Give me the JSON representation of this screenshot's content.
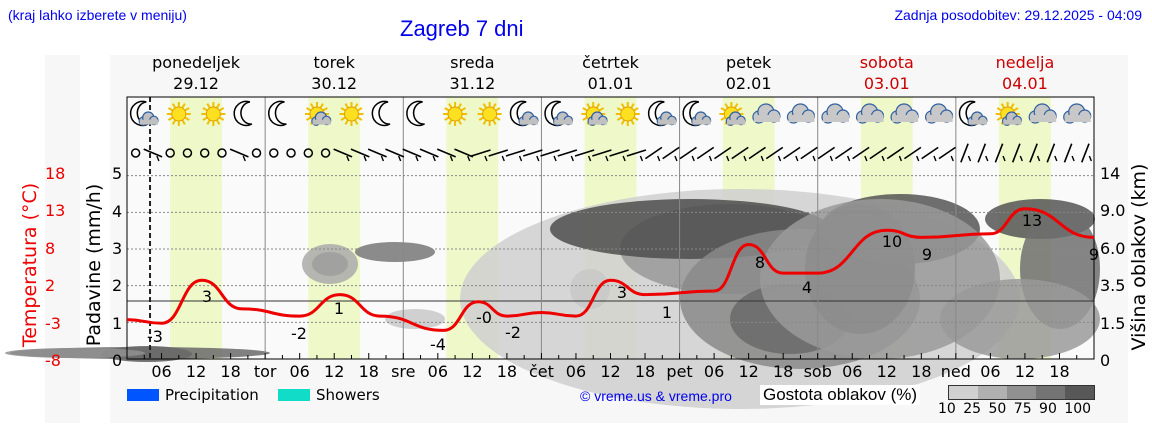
{
  "header": {
    "region_hint": "(kraj lahko izberete v meniju)",
    "title": "Zagreb 7 dni",
    "last_update": "Zadnja posodobitev: 29.12.2025 - 04:09"
  },
  "days": [
    {
      "name": "ponedeljek",
      "date": "29.12",
      "weekend": false,
      "icons": [
        "moon-cloud",
        "sun",
        "sun",
        "moon"
      ]
    },
    {
      "name": "torek",
      "date": "30.12",
      "weekend": false,
      "icons": [
        "moon",
        "sun-cloud",
        "sun",
        "moon"
      ]
    },
    {
      "name": "sreda",
      "date": "31.12",
      "weekend": false,
      "icons": [
        "moon",
        "sun",
        "sun",
        "moon-cloud"
      ]
    },
    {
      "name": "četrtek",
      "date": "01.01",
      "weekend": false,
      "icons": [
        "moon-cloud",
        "sun-cloud",
        "sun",
        "moon-cloud"
      ]
    },
    {
      "name": "petek",
      "date": "02.01",
      "weekend": false,
      "icons": [
        "moon-cloud",
        "sun-cloud",
        "cloud",
        "cloud"
      ]
    },
    {
      "name": "sobota",
      "date": "03.01",
      "weekend": true,
      "icons": [
        "cloud",
        "cloud",
        "cloud",
        "cloud"
      ]
    },
    {
      "name": "nedelja",
      "date": "04.01",
      "weekend": true,
      "icons": [
        "moon-cloud",
        "sun-cloud",
        "cloud",
        "cloud"
      ]
    }
  ],
  "axes": {
    "temp_label": "Temperatura (°C)",
    "temp_ticks": [
      "18",
      "13",
      "8",
      "2",
      "-3",
      "-8"
    ],
    "precip_label": "Padavine (mm/h)",
    "precip_ticks": [
      "5",
      "4",
      "3",
      "2",
      "1",
      "0"
    ],
    "cloud_label": "Višina oblakov (km)",
    "cloud_ticks": [
      "14",
      "9.0",
      "6.0",
      "3.5",
      "1.5",
      "0"
    ],
    "x_ticks": [
      "06",
      "12",
      "18",
      "tor",
      "06",
      "12",
      "18",
      "sre",
      "06",
      "12",
      "18",
      "čet",
      "06",
      "12",
      "18",
      "pet",
      "06",
      "12",
      "18",
      "sob",
      "06",
      "12",
      "18",
      "ned",
      "06",
      "12",
      "18"
    ]
  },
  "legend": {
    "precipitation": {
      "label": "Precipitation",
      "color": "#0055ff"
    },
    "showers": {
      "label": "Showers",
      "color": "#11dcc8"
    },
    "copyright": "© vreme.us & vreme.pro",
    "cloud_density_title": "Gostota oblakov (%)",
    "cloud_density_ticks": "10 25 50 75 90 100",
    "cloud_density_colors": [
      "#d0d0d0",
      "#b0b0b0",
      "#909090",
      "#747474",
      "#585858"
    ]
  },
  "colors": {
    "temperature_line": "#ee0000",
    "daylight_band": "#eef8c8",
    "weekend_text": "#cc0000",
    "link_blue": "#0000ee"
  },
  "chart_data": {
    "type": "line",
    "title": "Zagreb 7 dni",
    "xlabel": "",
    "x_range": [
      "29.12 00:00",
      "04.01 24:00"
    ],
    "series": [
      {
        "name": "Temperatura (°C)",
        "axis": "left-temp",
        "ylim": [
          -8,
          18
        ],
        "points": [
          {
            "t": "29.12 00",
            "v": -2.5
          },
          {
            "t": "29.12 06",
            "v": -3
          },
          {
            "t": "29.12 13",
            "v": 3
          },
          {
            "t": "29.12 20",
            "v": -1
          },
          {
            "t": "30.12 06",
            "v": -2
          },
          {
            "t": "30.12 13",
            "v": 1
          },
          {
            "t": "30.12 20",
            "v": -2
          },
          {
            "t": "31.12 07",
            "v": -4
          },
          {
            "t": "31.12 13",
            "v": 0
          },
          {
            "t": "31.12 18",
            "v": -2
          },
          {
            "t": "01.01 00",
            "v": -1.5
          },
          {
            "t": "01.01 06",
            "v": -2
          },
          {
            "t": "01.01 12",
            "v": 3
          },
          {
            "t": "01.01 18",
            "v": 1
          },
          {
            "t": "02.01 06",
            "v": 1.5
          },
          {
            "t": "02.01 12",
            "v": 8
          },
          {
            "t": "02.01 18",
            "v": 4
          },
          {
            "t": "03.01 00",
            "v": 4
          },
          {
            "t": "03.01 12",
            "v": 10
          },
          {
            "t": "03.01 18",
            "v": 9
          },
          {
            "t": "04.01 06",
            "v": 9.5
          },
          {
            "t": "04.01 12",
            "v": 13
          },
          {
            "t": "04.01 24",
            "v": 9
          }
        ],
        "labels": [
          "-3",
          "3",
          "-2",
          "1",
          "-4",
          "-0",
          "-2",
          "3",
          "1",
          "8",
          "4",
          "10",
          "9",
          "13",
          "9"
        ]
      },
      {
        "name": "Padavine (mm/h)",
        "axis": "left-precip",
        "ylim": [
          0,
          5.5
        ],
        "values": []
      }
    ],
    "cloud_height_ylim": [
      0,
      14
    ],
    "grid": true
  }
}
